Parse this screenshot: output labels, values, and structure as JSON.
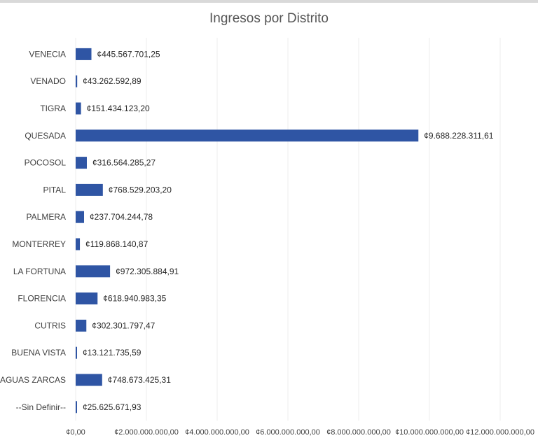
{
  "chart_data": {
    "type": "bar",
    "orientation": "horizontal",
    "title": "Ingresos por Distrito",
    "xlabel": "",
    "ylabel": "",
    "xlim": [
      0,
      12000000000
    ],
    "grid": true,
    "legend": "none",
    "bar_color": "#2f55a4",
    "categories": [
      "VENECIA",
      "VENADO",
      "TIGRA",
      "QUESADA",
      "POCOSOL",
      "PITAL",
      "PALMERA",
      "MONTERREY",
      "LA FORTUNA",
      "FLORENCIA",
      "CUTRIS",
      "BUENA VISTA",
      "AGUAS ZARCAS",
      "--Sin Definir--"
    ],
    "values": [
      445567701.25,
      43262592.89,
      151434123.2,
      9688228311.61,
      316564285.27,
      768529203.2,
      237704244.78,
      119868140.87,
      972305884.91,
      618940983.35,
      302301797.47,
      13121735.59,
      748673425.31,
      25625671.93
    ],
    "value_labels": [
      "¢445.567.701,25",
      "¢43.262.592,89",
      "¢151.434.123,20",
      "¢9.688.228.311,61",
      "¢316.564.285,27",
      "¢768.529.203,20",
      "¢237.704.244,78",
      "¢119.868.140,87",
      "¢972.305.884,91",
      "¢618.940.983,35",
      "¢302.301.797,47",
      "¢13.121.735,59",
      "¢748.673.425,31",
      "¢25.625.671,93"
    ],
    "x_ticks": [
      0,
      2000000000,
      4000000000,
      6000000000,
      8000000000,
      10000000000,
      12000000000
    ],
    "x_tick_labels": [
      "¢0,00",
      "¢2.000.000.000,00",
      "¢4.000.000.000,00",
      "¢6.000.000.000,00",
      "¢8.000.000.000,00",
      "¢10.000.000.000,00",
      "¢12.000.000.000,00"
    ]
  }
}
